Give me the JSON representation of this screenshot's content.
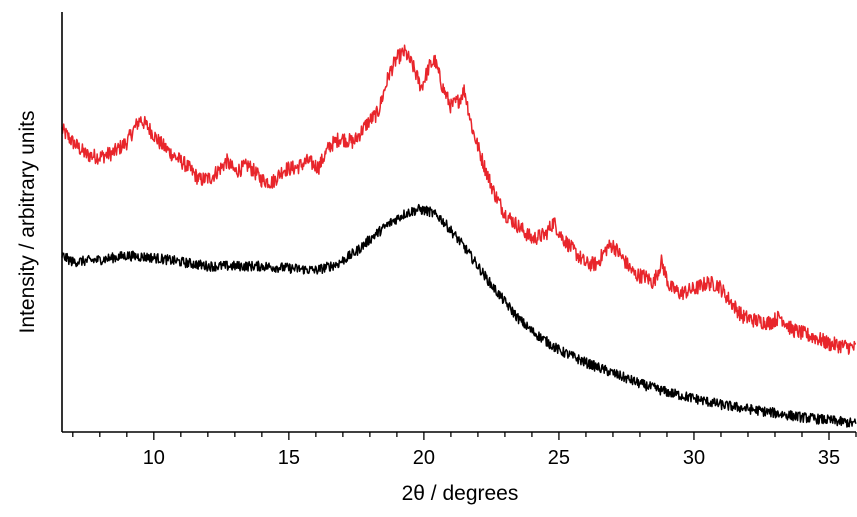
{
  "chart_data": {
    "type": "line",
    "title": "",
    "xlabel": "2θ / degrees",
    "ylabel": "Intensity / arbitrary units",
    "xlim": [
      6.6,
      36
    ],
    "ylim": [
      0,
      1
    ],
    "x_ticks": [
      10,
      15,
      20,
      25,
      30,
      35
    ],
    "x_minor_step": 1,
    "y_ticks_shown": false,
    "grid": false,
    "legend": "none",
    "series": [
      {
        "color": "#e8252b",
        "points": [
          [
            6.6,
            0.72
          ],
          [
            7.0,
            0.69
          ],
          [
            7.5,
            0.66
          ],
          [
            8.0,
            0.655
          ],
          [
            8.5,
            0.665
          ],
          [
            9.0,
            0.69
          ],
          [
            9.3,
            0.725
          ],
          [
            9.5,
            0.745
          ],
          [
            9.8,
            0.725
          ],
          [
            10.2,
            0.69
          ],
          [
            10.7,
            0.66
          ],
          [
            11.2,
            0.635
          ],
          [
            11.7,
            0.6
          ],
          [
            12.1,
            0.605
          ],
          [
            12.5,
            0.63
          ],
          [
            12.7,
            0.645
          ],
          [
            13.0,
            0.62
          ],
          [
            13.5,
            0.635
          ],
          [
            14.0,
            0.6
          ],
          [
            14.4,
            0.595
          ],
          [
            14.8,
            0.625
          ],
          [
            15.3,
            0.63
          ],
          [
            15.7,
            0.645
          ],
          [
            16.1,
            0.63
          ],
          [
            16.5,
            0.68
          ],
          [
            16.9,
            0.7
          ],
          [
            17.4,
            0.69
          ],
          [
            17.9,
            0.735
          ],
          [
            18.3,
            0.76
          ],
          [
            18.7,
            0.85
          ],
          [
            19.0,
            0.89
          ],
          [
            19.3,
            0.905
          ],
          [
            19.6,
            0.87
          ],
          [
            19.9,
            0.82
          ],
          [
            20.2,
            0.87
          ],
          [
            20.4,
            0.885
          ],
          [
            20.7,
            0.82
          ],
          [
            21.0,
            0.775
          ],
          [
            21.3,
            0.79
          ],
          [
            21.5,
            0.815
          ],
          [
            21.8,
            0.72
          ],
          [
            22.2,
            0.64
          ],
          [
            22.6,
            0.57
          ],
          [
            23.0,
            0.52
          ],
          [
            23.5,
            0.49
          ],
          [
            24.0,
            0.46
          ],
          [
            24.5,
            0.47
          ],
          [
            24.8,
            0.5
          ],
          [
            25.1,
            0.465
          ],
          [
            25.5,
            0.435
          ],
          [
            26.0,
            0.4
          ],
          [
            26.4,
            0.4
          ],
          [
            26.8,
            0.44
          ],
          [
            27.0,
            0.445
          ],
          [
            27.4,
            0.41
          ],
          [
            27.8,
            0.375
          ],
          [
            28.2,
            0.37
          ],
          [
            28.5,
            0.355
          ],
          [
            28.8,
            0.405
          ],
          [
            29.1,
            0.345
          ],
          [
            29.5,
            0.33
          ],
          [
            30.0,
            0.34
          ],
          [
            30.5,
            0.355
          ],
          [
            30.9,
            0.35
          ],
          [
            31.3,
            0.315
          ],
          [
            31.8,
            0.275
          ],
          [
            32.3,
            0.265
          ],
          [
            32.8,
            0.26
          ],
          [
            33.2,
            0.275
          ],
          [
            33.6,
            0.245
          ],
          [
            34.0,
            0.235
          ],
          [
            34.5,
            0.225
          ],
          [
            35.0,
            0.21
          ],
          [
            35.5,
            0.205
          ],
          [
            36.0,
            0.2
          ]
        ]
      },
      {
        "color": "#000000",
        "points": [
          [
            6.6,
            0.42
          ],
          [
            7.0,
            0.405
          ],
          [
            8.0,
            0.41
          ],
          [
            9.0,
            0.42
          ],
          [
            10.0,
            0.415
          ],
          [
            11.0,
            0.405
          ],
          [
            12.0,
            0.395
          ],
          [
            13.0,
            0.395
          ],
          [
            14.0,
            0.395
          ],
          [
            15.0,
            0.39
          ],
          [
            16.0,
            0.385
          ],
          [
            16.8,
            0.4
          ],
          [
            17.5,
            0.43
          ],
          [
            18.2,
            0.47
          ],
          [
            18.8,
            0.5
          ],
          [
            19.3,
            0.52
          ],
          [
            19.8,
            0.53
          ],
          [
            20.2,
            0.525
          ],
          [
            20.6,
            0.51
          ],
          [
            21.0,
            0.48
          ],
          [
            21.5,
            0.44
          ],
          [
            22.0,
            0.395
          ],
          [
            22.5,
            0.35
          ],
          [
            23.0,
            0.31
          ],
          [
            23.5,
            0.27
          ],
          [
            24.0,
            0.24
          ],
          [
            25.0,
            0.195
          ],
          [
            26.0,
            0.165
          ],
          [
            27.0,
            0.14
          ],
          [
            28.0,
            0.115
          ],
          [
            29.0,
            0.095
          ],
          [
            30.0,
            0.08
          ],
          [
            31.0,
            0.065
          ],
          [
            32.0,
            0.055
          ],
          [
            33.0,
            0.045
          ],
          [
            34.0,
            0.035
          ],
          [
            35.0,
            0.028
          ],
          [
            36.0,
            0.02
          ]
        ]
      }
    ]
  }
}
